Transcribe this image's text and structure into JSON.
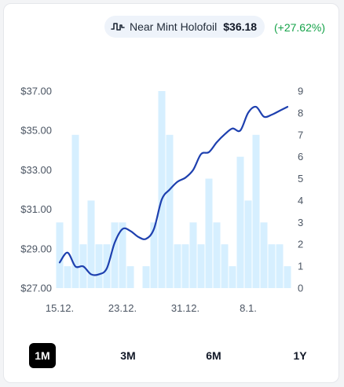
{
  "header": {
    "icon": "pulse-icon",
    "label": "Near Mint Holofoil",
    "price": "$36.18",
    "change": "(+27.62%)"
  },
  "ranges": [
    {
      "label": "1M",
      "active": true
    },
    {
      "label": "3M",
      "active": false
    },
    {
      "label": "6M",
      "active": false
    },
    {
      "label": "1Y",
      "active": false
    }
  ],
  "colors": {
    "line": "#1e40af",
    "bar": "#d6efff",
    "grid": "#e5e7eb",
    "change": "#16a34a"
  },
  "chart_data": {
    "type": "bar+line",
    "x_tick_labels": [
      "15.12.",
      "23.12.",
      "31.12.",
      "8.1."
    ],
    "x_tick_indices": [
      0,
      8,
      16,
      24
    ],
    "y_left": {
      "ticks": [
        "$27.00",
        "$29.00",
        "$31.00",
        "$33.00",
        "$35.00",
        "$37.00"
      ],
      "min": 27,
      "max": 37
    },
    "y_right": {
      "ticks": [
        "0",
        "1",
        "2",
        "3",
        "4",
        "5",
        "6",
        "7",
        "8",
        "9"
      ],
      "min": 0,
      "max": 9
    },
    "grid": false,
    "series": [
      {
        "kind": "bar",
        "axis": "right",
        "values": [
          3,
          1,
          7,
          2,
          4,
          2,
          2,
          3,
          3,
          1,
          0,
          1,
          3,
          9,
          7,
          2,
          2,
          3,
          2,
          5,
          3,
          2,
          1,
          6,
          4,
          7,
          3,
          2,
          2,
          1
        ]
      },
      {
        "kind": "line",
        "axis": "left",
        "values": [
          28.3,
          28.8,
          28.1,
          28.1,
          27.7,
          27.7,
          28.0,
          29.3,
          30.0,
          29.9,
          29.6,
          29.5,
          30.0,
          31.5,
          32.0,
          32.4,
          32.6,
          33.0,
          33.8,
          33.9,
          34.4,
          34.8,
          35.1,
          35.0,
          35.9,
          36.2,
          35.7,
          35.8,
          36.0,
          36.2
        ]
      }
    ]
  }
}
